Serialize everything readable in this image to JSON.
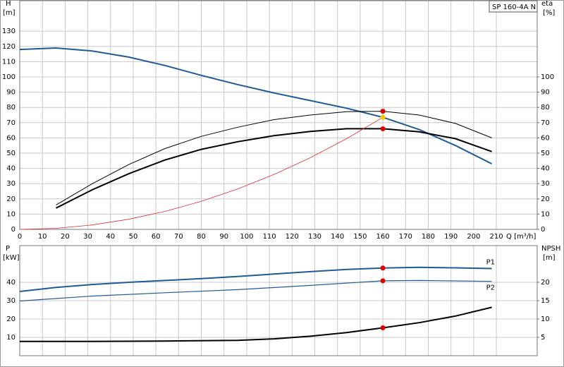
{
  "chart_data": [
    {
      "type": "line",
      "annotation": "SP 160-4A N",
      "y_label": "H",
      "y_unit": "[m]",
      "y2_label": "eta",
      "y2_unit": "[%]",
      "x_label": "Q [m³/h]",
      "xlim": [
        0,
        228
      ],
      "xticks": [
        0,
        10,
        20,
        30,
        40,
        50,
        60,
        70,
        80,
        90,
        100,
        110,
        120,
        130,
        140,
        150,
        160,
        170,
        180,
        190,
        200,
        210
      ],
      "ylim": [
        0,
        150
      ],
      "yticks": [
        0,
        10,
        20,
        30,
        40,
        50,
        60,
        70,
        80,
        90,
        100,
        110,
        120,
        130
      ],
      "y2lim": [
        0,
        150
      ],
      "y2ticks": [
        0,
        10,
        20,
        30,
        40,
        50,
        60,
        70,
        80,
        90,
        100
      ],
      "grid": true,
      "series": [
        {
          "color": "#1f5a96",
          "line_width": 2,
          "x": [
            0,
            16,
            32,
            48,
            64,
            80,
            96,
            112,
            128,
            144,
            160,
            176,
            192,
            208
          ],
          "values": [
            118,
            119,
            117,
            113,
            107.5,
            101,
            95,
            89.5,
            84.5,
            79.5,
            73.5,
            65.5,
            55,
            43
          ]
        },
        {
          "color": "#000000",
          "line_width": 1,
          "axis": "y2",
          "x": [
            16,
            32,
            48,
            64,
            80,
            96,
            112,
            128,
            144,
            160,
            176,
            192,
            208
          ],
          "values": [
            16,
            30,
            42.5,
            53,
            61,
            67,
            72,
            75,
            77.2,
            77.5,
            75,
            69.5,
            60
          ]
        },
        {
          "color": "#000000",
          "line_width": 2,
          "axis": "y2",
          "x": [
            16,
            32,
            48,
            64,
            80,
            96,
            112,
            128,
            144,
            160,
            176,
            192,
            208
          ],
          "values": [
            14,
            26,
            36.5,
            45.5,
            52.5,
            57.5,
            61.5,
            64.2,
            66,
            66,
            64,
            59.5,
            51
          ]
        },
        {
          "color": "#e03030",
          "line_width": 0.8,
          "x": [
            0,
            16,
            32,
            48,
            64,
            80,
            96,
            112,
            128,
            144,
            160
          ],
          "values": [
            0,
            0.7,
            2.9,
            6.6,
            11.8,
            18.4,
            26.5,
            36,
            47,
            59.5,
            73.5
          ]
        }
      ],
      "markers": [
        {
          "x": 160,
          "y": 77.5,
          "color": "#e00000",
          "axis": "y2"
        },
        {
          "x": 160,
          "y": 73.5,
          "color": "#f5c400"
        },
        {
          "x": 160,
          "y": 66,
          "color": "#e00000",
          "axis": "y2"
        }
      ]
    },
    {
      "type": "line",
      "y_label": "P",
      "y_unit": "[kW]",
      "y2_label": "NPSH",
      "y2_unit": "[m]",
      "xlim": [
        0,
        228
      ],
      "ylim": [
        0,
        60
      ],
      "yticks": [
        10,
        20,
        30,
        40
      ],
      "y2lim": [
        0,
        30
      ],
      "y2ticks": [
        5,
        10,
        15,
        20
      ],
      "grid": true,
      "series": [
        {
          "name": "P1",
          "color": "#1f5a96",
          "line_width": 2,
          "x": [
            0,
            16,
            32,
            48,
            64,
            80,
            96,
            112,
            128,
            144,
            160,
            176,
            192,
            208
          ],
          "values": [
            35,
            37.2,
            38.8,
            40,
            41,
            42,
            43.2,
            44.5,
            45.8,
            47,
            47.8,
            48.2,
            47.9,
            47.5
          ]
        },
        {
          "name": "P2",
          "color": "#1f5a96",
          "line_width": 1.2,
          "x": [
            0,
            32,
            64,
            96,
            128,
            160,
            176,
            208
          ],
          "values": [
            29.8,
            32.5,
            34.3,
            36,
            38.3,
            40.8,
            41,
            40.5
          ]
        },
        {
          "color": "#000000",
          "line_width": 2,
          "axis": "y2",
          "x": [
            0,
            32,
            64,
            96,
            112,
            128,
            144,
            160,
            176,
            192,
            208
          ],
          "values": [
            3.9,
            3.9,
            4,
            4.2,
            4.6,
            5.3,
            6.3,
            7.6,
            9,
            10.8,
            13.2
          ]
        }
      ],
      "markers": [
        {
          "x": 160,
          "y": 47.8,
          "color": "#e00000"
        },
        {
          "x": 160,
          "y": 40.8,
          "color": "#e00000"
        },
        {
          "x": 160,
          "y": 7.6,
          "color": "#e00000",
          "axis": "y2"
        }
      ]
    }
  ]
}
